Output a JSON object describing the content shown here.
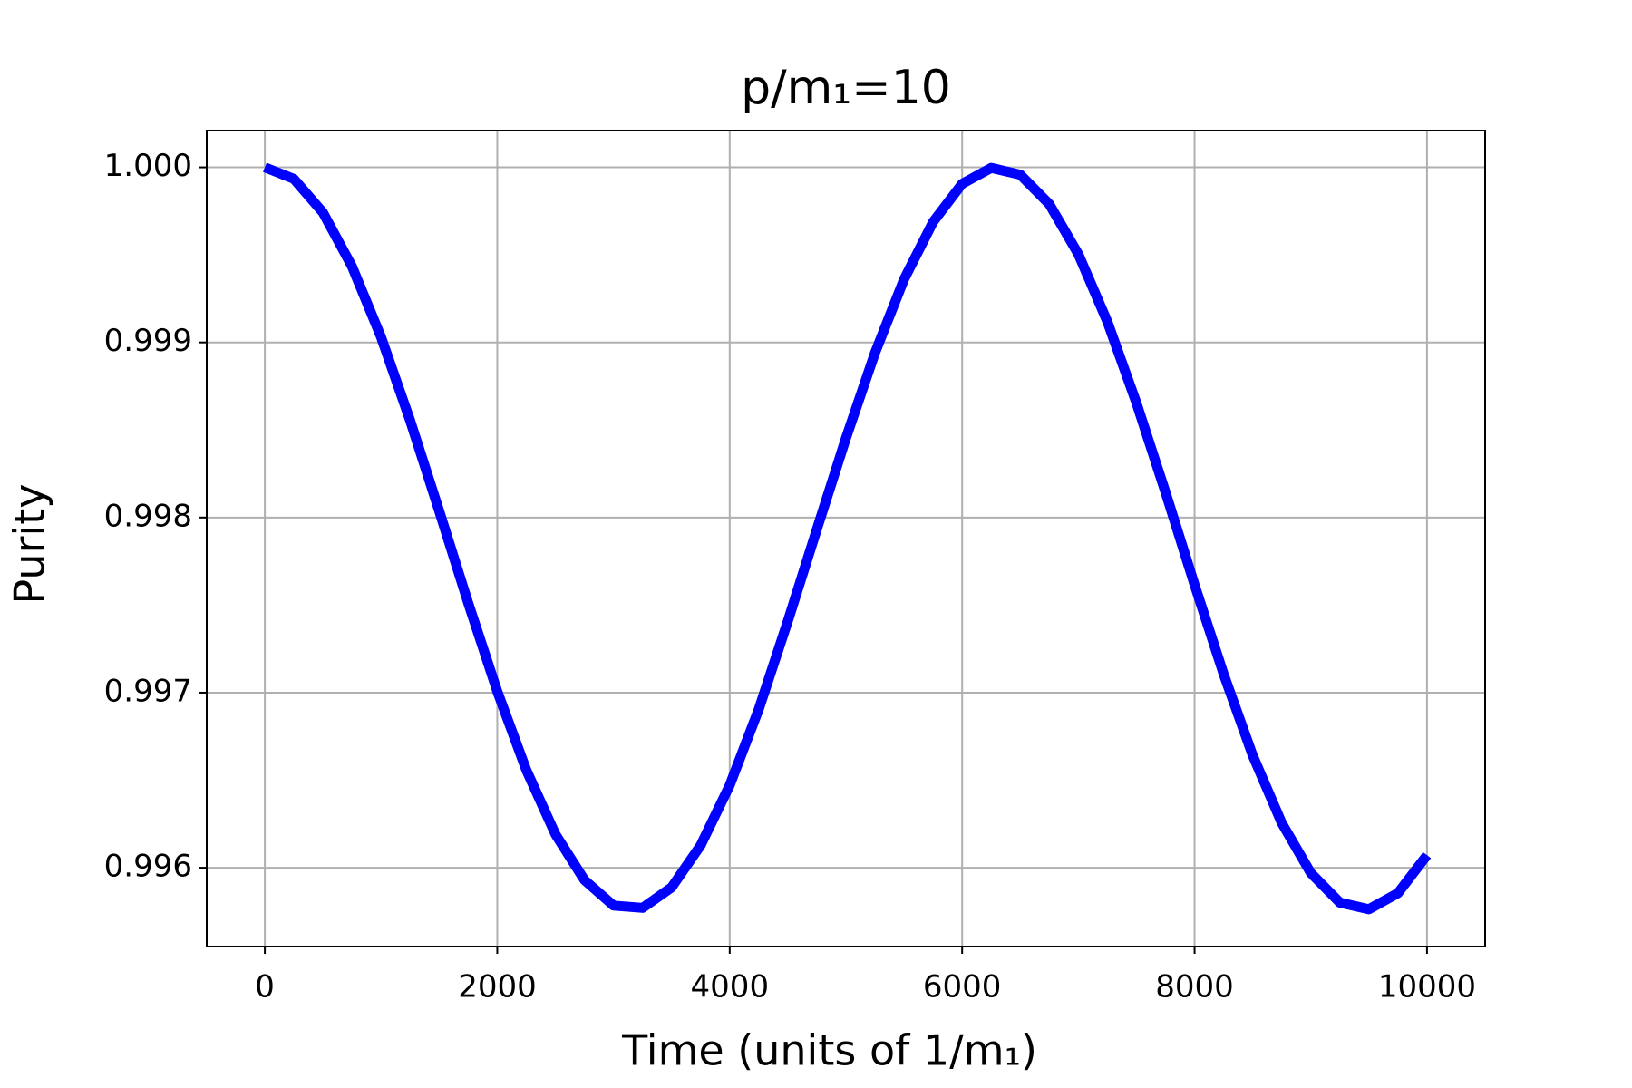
{
  "chart_data": {
    "type": "line",
    "title": "p/m₁=10",
    "x_label": "Time (units of 1/m₁)",
    "y_label": "Purity",
    "x": [
      0,
      250,
      500,
      750,
      1000,
      1250,
      1500,
      1750,
      2000,
      2250,
      2500,
      2750,
      3000,
      3250,
      3500,
      3750,
      4000,
      4250,
      4500,
      4750,
      5000,
      5250,
      5500,
      5750,
      6000,
      6250,
      6500,
      6750,
      7000,
      7250,
      7500,
      7750,
      8000,
      8250,
      8500,
      8750,
      9000,
      9250,
      9500,
      9750,
      10000
    ],
    "series": [
      {
        "color": "#0000ff",
        "values": [
          1.0,
          0.999934,
          0.999742,
          0.999434,
          0.999031,
          0.998555,
          0.998038,
          0.997512,
          0.997008,
          0.996558,
          0.996192,
          0.99593,
          0.995784,
          0.995771,
          0.995888,
          0.996128,
          0.996471,
          0.996905,
          0.997408,
          0.997933,
          0.998453,
          0.99894,
          0.99936,
          0.999688,
          0.999906,
          0.999997,
          0.999958,
          0.99979,
          0.999504,
          0.999118,
          0.998654,
          0.998144,
          0.997616,
          0.997106,
          0.996642,
          0.996256,
          0.99597,
          0.995801,
          0.995763,
          0.995855,
          0.996072
        ]
      }
    ],
    "xlim": [
      -500,
      10500
    ],
    "ylim": [
      0.99555,
      1.00021
    ],
    "xticks": [
      0,
      2000,
      4000,
      6000,
      8000,
      10000
    ],
    "yticks": [
      0.996,
      0.997,
      0.998,
      0.999,
      {
        "value": 1,
        "label": "1.000"
      }
    ],
    "grid": true
  }
}
